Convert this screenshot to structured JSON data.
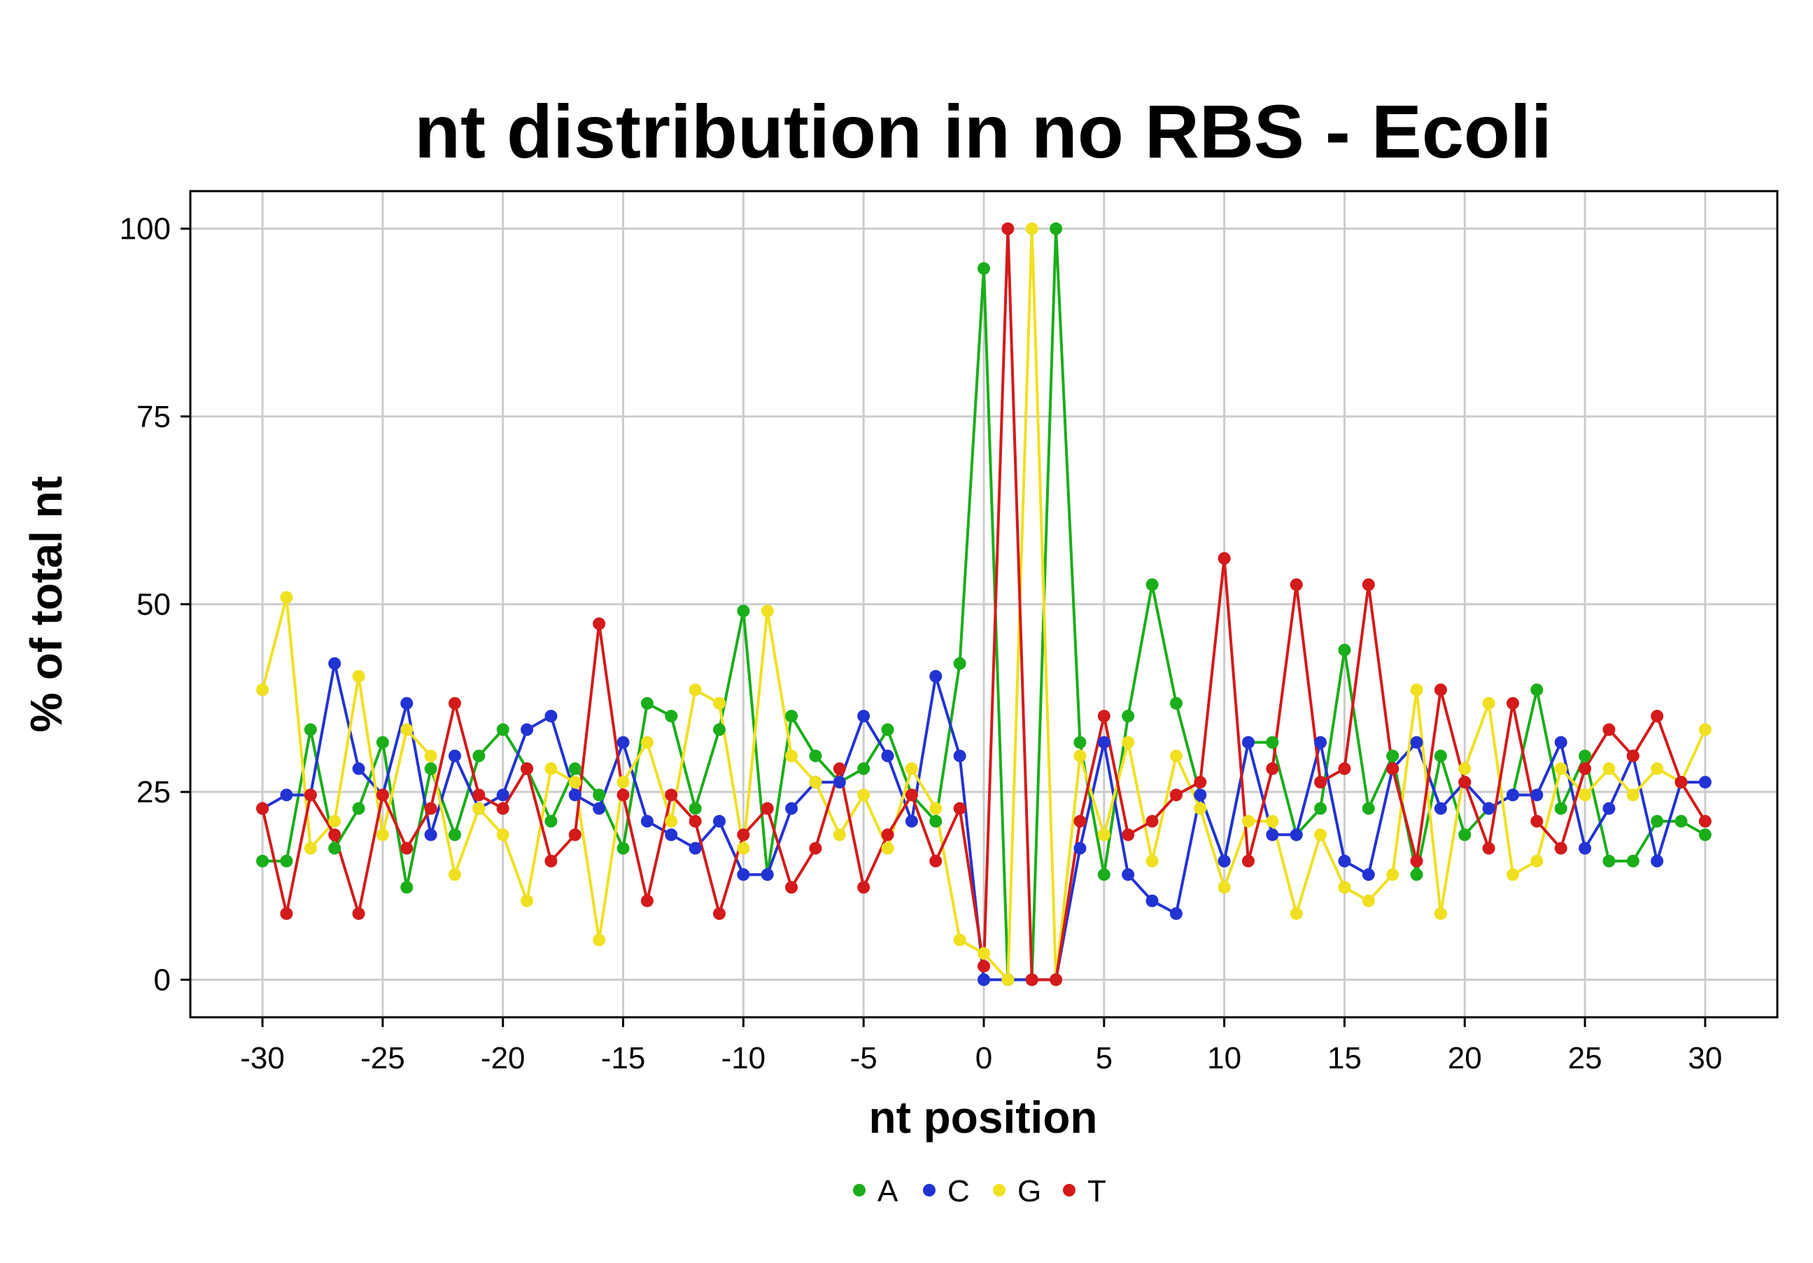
{
  "chart_data": {
    "type": "line",
    "title": "nt distribution in no RBS - Ecoli",
    "xlabel": "nt position",
    "ylabel": "% of total nt",
    "xlim": [
      -33,
      33
    ],
    "ylim": [
      -5,
      105
    ],
    "xticks": [
      -30,
      -25,
      -20,
      -15,
      -10,
      -5,
      0,
      5,
      10,
      15,
      20,
      25,
      30
    ],
    "yticks": [
      0,
      25,
      50,
      75,
      100
    ],
    "grid": true,
    "legend_position": "bottom",
    "x": [
      -30,
      -29,
      -28,
      -27,
      -26,
      -25,
      -24,
      -23,
      -22,
      -21,
      -20,
      -19,
      -18,
      -17,
      -16,
      -15,
      -14,
      -13,
      -12,
      -11,
      -10,
      -9,
      -8,
      -7,
      -6,
      -5,
      -4,
      -3,
      -2,
      -1,
      0,
      1,
      2,
      3,
      4,
      5,
      6,
      7,
      8,
      9,
      10,
      11,
      12,
      13,
      14,
      15,
      16,
      17,
      18,
      19,
      20,
      21,
      22,
      23,
      24,
      25,
      26,
      27,
      28,
      29,
      30
    ],
    "series": [
      {
        "name": "A",
        "color": "#1aae1a",
        "values": [
          15.8,
          15.8,
          33.3,
          17.5,
          22.8,
          31.6,
          12.3,
          28.1,
          19.3,
          29.8,
          33.3,
          28.1,
          21.1,
          28.1,
          24.6,
          17.5,
          36.8,
          35.1,
          22.8,
          33.3,
          49.1,
          14.0,
          35.1,
          29.8,
          26.3,
          28.1,
          33.3,
          24.6,
          21.1,
          42.1,
          94.7,
          0,
          0,
          100,
          31.6,
          14.0,
          35.1,
          52.6,
          36.8,
          24.6,
          15.8,
          31.6,
          31.6,
          19.3,
          22.8,
          43.9,
          22.8,
          29.8,
          14.0,
          29.8,
          19.3,
          22.8,
          24.6,
          38.6,
          22.8,
          29.8,
          15.8,
          15.8,
          21.1,
          21.1,
          19.3
        ]
      },
      {
        "name": "C",
        "color": "#2233d4",
        "values": [
          22.8,
          24.6,
          24.6,
          42.1,
          28.1,
          24.6,
          36.8,
          19.3,
          29.8,
          22.8,
          24.6,
          33.3,
          35.1,
          24.6,
          22.8,
          31.6,
          21.1,
          19.3,
          17.5,
          21.1,
          14.0,
          14.0,
          22.8,
          26.3,
          26.3,
          35.1,
          29.8,
          21.1,
          40.4,
          29.8,
          0,
          0,
          0,
          0,
          17.5,
          31.6,
          14.0,
          10.5,
          8.8,
          24.6,
          15.8,
          31.6,
          19.3,
          19.3,
          31.6,
          15.8,
          14.0,
          28.1,
          31.6,
          22.8,
          26.3,
          22.8,
          24.6,
          24.6,
          31.6,
          17.5,
          22.8,
          29.8,
          15.8,
          26.3,
          26.3
        ]
      },
      {
        "name": "G",
        "color": "#f0e020",
        "values": [
          38.6,
          50.9,
          17.5,
          21.1,
          40.4,
          19.3,
          33.3,
          29.8,
          14.0,
          22.8,
          19.3,
          10.5,
          28.1,
          26.3,
          5.3,
          26.3,
          31.6,
          21.1,
          38.6,
          36.8,
          17.5,
          49.1,
          29.8,
          26.3,
          19.3,
          24.6,
          17.5,
          28.1,
          22.8,
          5.3,
          3.5,
          0,
          100,
          0,
          29.8,
          19.3,
          31.6,
          15.8,
          29.8,
          22.8,
          12.3,
          21.1,
          21.1,
          8.8,
          19.3,
          12.3,
          10.5,
          14.0,
          38.6,
          8.8,
          28.1,
          36.8,
          14.0,
          15.8,
          28.1,
          24.6,
          28.1,
          24.6,
          28.1,
          26.3,
          33.3
        ]
      },
      {
        "name": "T",
        "color": "#d41a1a",
        "values": [
          22.8,
          8.8,
          24.6,
          19.3,
          8.8,
          24.6,
          17.5,
          22.8,
          36.8,
          24.6,
          22.8,
          28.1,
          15.8,
          19.3,
          47.4,
          24.6,
          10.5,
          24.6,
          21.1,
          8.8,
          19.3,
          22.8,
          12.3,
          17.5,
          28.1,
          12.3,
          19.3,
          24.6,
          15.8,
          22.8,
          1.8,
          100,
          0,
          0,
          21.1,
          35.1,
          19.3,
          21.1,
          24.6,
          26.3,
          56.1,
          15.8,
          28.1,
          52.6,
          26.3,
          28.1,
          52.6,
          28.1,
          15.8,
          38.6,
          26.3,
          17.5,
          36.8,
          21.1,
          17.5,
          28.1,
          33.3,
          29.8,
          35.1,
          26.3,
          21.1
        ]
      }
    ]
  }
}
